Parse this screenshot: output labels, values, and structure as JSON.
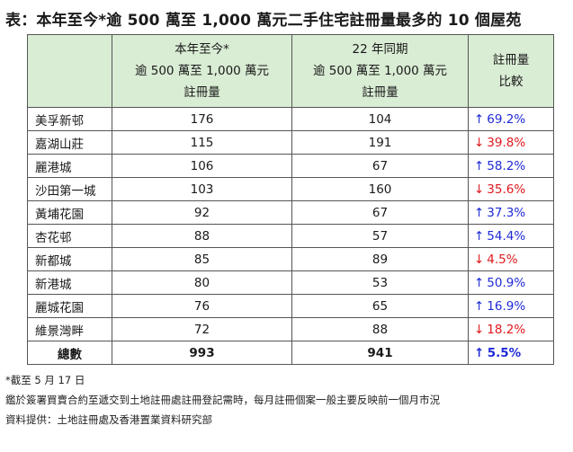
{
  "title": "表：本年至今*逾 500 萬至 1,000 萬元二手住宅註冊量最多的 10 個屋苑",
  "header": {
    "col1": "",
    "col2": [
      "本年至今*",
      "逾 500 萬至 1,000 萬元",
      "註冊量"
    ],
    "col3": [
      "22 年同期",
      "逾 500 萬至 1,000 萬元",
      "註冊量"
    ],
    "col4": [
      "註冊量",
      "比較"
    ]
  },
  "rows": [
    {
      "name": "美孚新邨",
      "ytd": "176",
      "prev": "104",
      "dir": "up",
      "arrow": "↑",
      "change": "69.2%"
    },
    {
      "name": "嘉湖山莊",
      "ytd": "115",
      "prev": "191",
      "dir": "down",
      "arrow": "↓",
      "change": "39.8%"
    },
    {
      "name": "麗港城",
      "ytd": "106",
      "prev": "67",
      "dir": "up",
      "arrow": "↑",
      "change": "58.2%"
    },
    {
      "name": "沙田第一城",
      "ytd": "103",
      "prev": "160",
      "dir": "down",
      "arrow": "↓",
      "change": "35.6%"
    },
    {
      "name": "黃埔花園",
      "ytd": "92",
      "prev": "67",
      "dir": "up",
      "arrow": "↑",
      "change": "37.3%"
    },
    {
      "name": "杏花邨",
      "ytd": "88",
      "prev": "57",
      "dir": "up",
      "arrow": "↑",
      "change": "54.4%"
    },
    {
      "name": "新都城",
      "ytd": "85",
      "prev": "89",
      "dir": "down",
      "arrow": "↓",
      "change": "4.5%"
    },
    {
      "name": "新港城",
      "ytd": "80",
      "prev": "53",
      "dir": "up",
      "arrow": "↑",
      "change": "50.9%"
    },
    {
      "name": "麗城花園",
      "ytd": "76",
      "prev": "65",
      "dir": "up",
      "arrow": "↑",
      "change": "16.9%"
    },
    {
      "name": "維景灣畔",
      "ytd": "72",
      "prev": "88",
      "dir": "down",
      "arrow": "↓",
      "change": "18.2%"
    }
  ],
  "total": {
    "name": "總數",
    "ytd": "993",
    "prev": "941",
    "dir": "up",
    "arrow": "↑",
    "change": "5.5%"
  },
  "notes": {
    "note1": "*截至 5 月 17 日",
    "note2": "鑑於簽署買賣合約至遞交到土地註冊處註冊登記需時，每月註冊個案一般主要反映前一個月市況",
    "source": "資料提供：土地註冊處及香港置業資料研究部"
  },
  "colors": {
    "header_bg": "#d9ecd4",
    "up": "#1f2ad6",
    "down": "#e0181e"
  }
}
